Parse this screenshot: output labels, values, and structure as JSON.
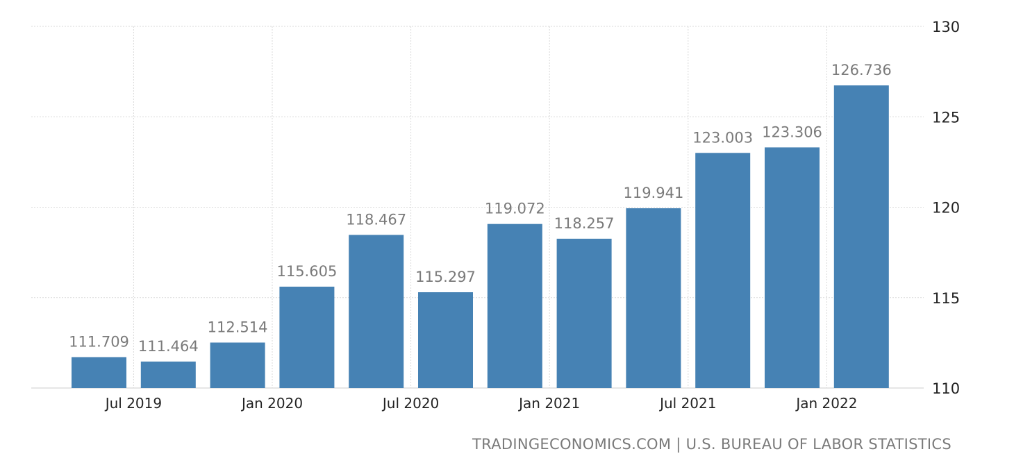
{
  "chart_data": {
    "type": "bar",
    "categories": [
      "2019-Q2",
      "2019-Q3",
      "2019-Q4",
      "2020-Q1",
      "2020-Q2",
      "2020-Q3",
      "2020-Q4",
      "2021-Q1",
      "2021-Q2",
      "2021-Q3",
      "2021-Q4",
      "2022-Q1"
    ],
    "values": [
      111.709,
      111.464,
      112.514,
      115.605,
      118.467,
      115.297,
      119.072,
      118.257,
      119.941,
      123.003,
      123.306,
      126.736
    ],
    "value_labels": [
      "111.709",
      "111.464",
      "112.514",
      "115.605",
      "118.467",
      "115.297",
      "119.072",
      "118.257",
      "119.941",
      "123.003",
      "123.306",
      "126.736"
    ],
    "x_tick_labels": [
      "Jul 2019",
      "Jan 2020",
      "Jul 2020",
      "Jan 2021",
      "Jul 2021",
      "Jan 2022"
    ],
    "y_ticks": [
      110,
      115,
      120,
      125,
      130
    ],
    "ylim": [
      110,
      130
    ],
    "y_axis_side": "right",
    "grid": true,
    "legend": "none",
    "bar_color": "#4682b4",
    "title": "",
    "xlabel": "",
    "ylabel": ""
  },
  "source": "TRADINGECONOMICS.COM | U.S. BUREAU OF LABOR STATISTICS"
}
